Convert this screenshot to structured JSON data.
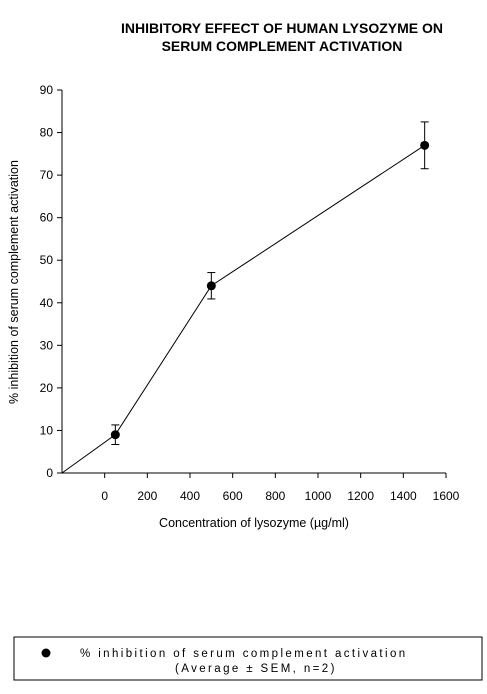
{
  "chart_data": {
    "type": "line",
    "title": [
      "INHIBITORY EFFECT OF HUMAN LYSOZYME ON",
      "SERUM COMPLEMENT ACTIVATION"
    ],
    "xlabel": "Concentration of lysozyme (µg/ml)",
    "ylabel": "% inhibition of serum complement activation",
    "xlim": [
      -200,
      1600
    ],
    "ylim": [
      0,
      90
    ],
    "xticks": [
      0,
      200,
      400,
      600,
      800,
      1000,
      1200,
      1400,
      1600
    ],
    "yticks": [
      0,
      10,
      20,
      30,
      40,
      50,
      60,
      70,
      80,
      90
    ],
    "grid": false,
    "legend_placement": "bottom",
    "line_from_origin": {
      "x": -200,
      "y": 0
    },
    "series": [
      {
        "name": [
          "% inhibition of serum complement activation",
          "(Average ± SEM, n=2)"
        ],
        "marker": "circle",
        "color": "#000000",
        "x": [
          50,
          500,
          1500
        ],
        "y": [
          9,
          44,
          77
        ],
        "error": [
          2.3,
          3.1,
          5.5
        ]
      }
    ]
  }
}
